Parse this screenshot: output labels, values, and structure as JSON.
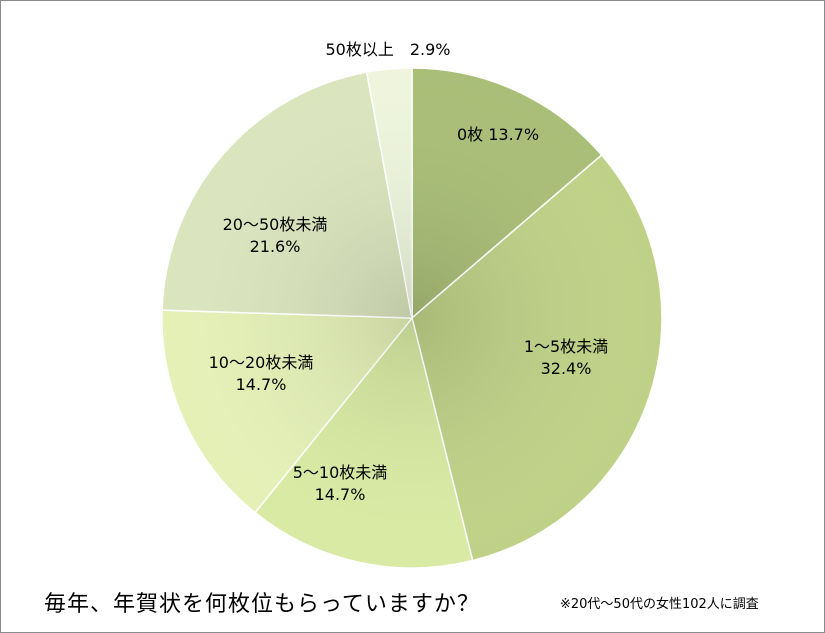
{
  "chart_data": {
    "type": "pie",
    "title": "毎年、年賀状を何枚位もらっていますか？",
    "note": "※20代〜50代の女性102人に調査",
    "slices": [
      {
        "label": "0枚",
        "value": 13.7,
        "value_text": "13.7%",
        "color": "#a9be77"
      },
      {
        "label": "1〜5枚未満",
        "value": 32.4,
        "value_text": "32.4%",
        "color": "#bfd187"
      },
      {
        "label": "5〜10枚未満",
        "value": 14.7,
        "value_text": "14.7%",
        "color": "#d8eaa3"
      },
      {
        "label": "10〜20枚未満",
        "value": 14.7,
        "value_text": "14.7%",
        "color": "#e4f0b6"
      },
      {
        "label": "20〜50枚未満",
        "value": 21.6,
        "value_text": "21.6%",
        "color": "#dae4bd"
      },
      {
        "label": "50枚以上",
        "value": 2.9,
        "value_text": "2.9%",
        "color": "#eef5dc"
      }
    ]
  }
}
